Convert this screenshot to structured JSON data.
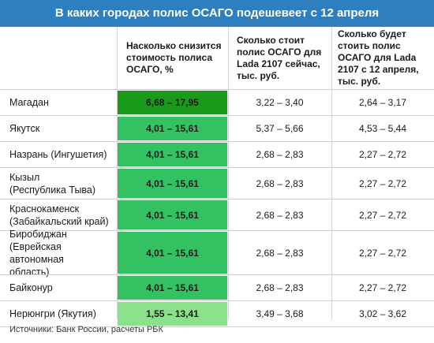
{
  "title": "В каких городах полис ОСАГО подешевеет с 12 апреля",
  "colors": {
    "header_bar": "#2e7fc0",
    "dark_green": "#1a9a1a",
    "green": "#33c162",
    "light_green": "#8be08a"
  },
  "table": {
    "headers": [
      "",
      "Насколько снизится стоимость полиса ОСАГО, %",
      "Сколько стоит полис ОСАГО для Lada 2107 сейчас, тыс. руб.",
      "Сколько будет стоить полис ОСАГО для Lada 2107 с 12 апреля, тыс. руб."
    ],
    "rows": [
      {
        "city": "Магадан",
        "reduction": "6,68 – 17,95",
        "now": "3,22 – 3,40",
        "after": "2,64 – 3,17",
        "shade": "dark_green"
      },
      {
        "city": "Якутск",
        "reduction": "4,01 – 15,61",
        "now": "5,37 – 5,66",
        "after": "4,53 – 5,44",
        "shade": "green"
      },
      {
        "city": "Назрань (Ингушетия)",
        "reduction": "4,01 – 15,61",
        "now": "2,68 – 2,83",
        "after": "2,27 – 2,72",
        "shade": "green"
      },
      {
        "city": "Кызыл\n(Республика Тыва)",
        "reduction": "4,01 – 15,61",
        "now": "2,68 – 2,83",
        "after": "2,27 – 2,72",
        "shade": "green"
      },
      {
        "city": "Краснокаменск\n(Забайкальский край)",
        "reduction": "4,01 – 15,61",
        "now": "2,68 – 2,83",
        "after": "2,27 – 2,72",
        "shade": "green"
      },
      {
        "city": "Биробиджан\n(Еврейская автономная\nобласть)",
        "reduction": "4,01 – 15,61",
        "now": "2,68 – 2,83",
        "after": "2,27 – 2,72",
        "shade": "green"
      },
      {
        "city": "Байконур",
        "reduction": "4,01 – 15,61",
        "now": "2,68 – 2,83",
        "after": "2,27 – 2,72",
        "shade": "green"
      },
      {
        "city": "Нерюнгри (Якутия)",
        "reduction": "1,55 – 13,41",
        "now": "3,49 – 3,68",
        "after": "3,02 – 3,62",
        "shade": "light_green"
      }
    ]
  },
  "source": "Источники: Банк России, расчеты РБК",
  "chart_data": {
    "type": "table",
    "title": "В каких городах полис ОСАГО подешевеет с 12 апреля",
    "columns": [
      "",
      "Насколько снизится стоимость полиса ОСАГО, %",
      "Сколько стоит полис ОСАГО для Lada 2107 сейчас, тыс. руб.",
      "Сколько будет стоить полис ОСАГО для Lada 2107 с 12 апреля, тыс. руб."
    ],
    "rows": [
      [
        "Магадан",
        "6,68 – 17,95",
        "3,22 – 3,40",
        "2,64 – 3,17"
      ],
      [
        "Якутск",
        "4,01 – 15,61",
        "5,37 – 5,66",
        "4,53 – 5,44"
      ],
      [
        "Назрань (Ингушетия)",
        "4,01 – 15,61",
        "2,68 – 2,83",
        "2,27 – 2,72"
      ],
      [
        "Кызыл (Республика Тыва)",
        "4,01 – 15,61",
        "2,68 – 2,83",
        "2,27 – 2,72"
      ],
      [
        "Краснокаменск (Забайкальский край)",
        "4,01 – 15,61",
        "2,68 – 2,83",
        "2,27 – 2,72"
      ],
      [
        "Биробиджан (Еврейская автономная область)",
        "4,01 – 15,61",
        "2,68 – 2,83",
        "2,27 – 2,72"
      ],
      [
        "Байконур",
        "4,01 – 15,61",
        "2,68 – 2,83",
        "2,27 – 2,72"
      ],
      [
        "Нерюнгри (Якутия)",
        "1,55 – 13,41",
        "3,49 – 3,68",
        "3,02 – 3,62"
      ]
    ]
  }
}
